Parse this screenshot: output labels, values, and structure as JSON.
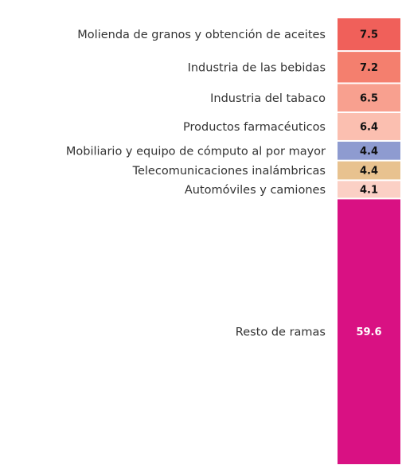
{
  "chart_data": {
    "type": "bar",
    "stacked": true,
    "categories": [
      "Molienda de granos y obtención de aceites",
      "Industria de las bebidas",
      "Industria del tabaco",
      "Productos farmacéuticos",
      "Mobiliario y equipo de cómputo al por mayor",
      "Telecomunicaciones inalámbricas",
      "Automóviles y camiones",
      "Resto de ramas"
    ],
    "values": [
      7.5,
      7.2,
      6.5,
      6.4,
      4.4,
      4.4,
      4.1,
      59.6
    ],
    "colors": [
      "#f0605a",
      "#f47f6e",
      "#f8a08f",
      "#fbbfb0",
      "#8e9bd0",
      "#e8c28f",
      "#fbd0c5",
      "#d91183"
    ],
    "label_colors": [
      "#111111",
      "#111111",
      "#111111",
      "#111111",
      "#111111",
      "#111111",
      "#111111",
      "#ffffff"
    ]
  }
}
